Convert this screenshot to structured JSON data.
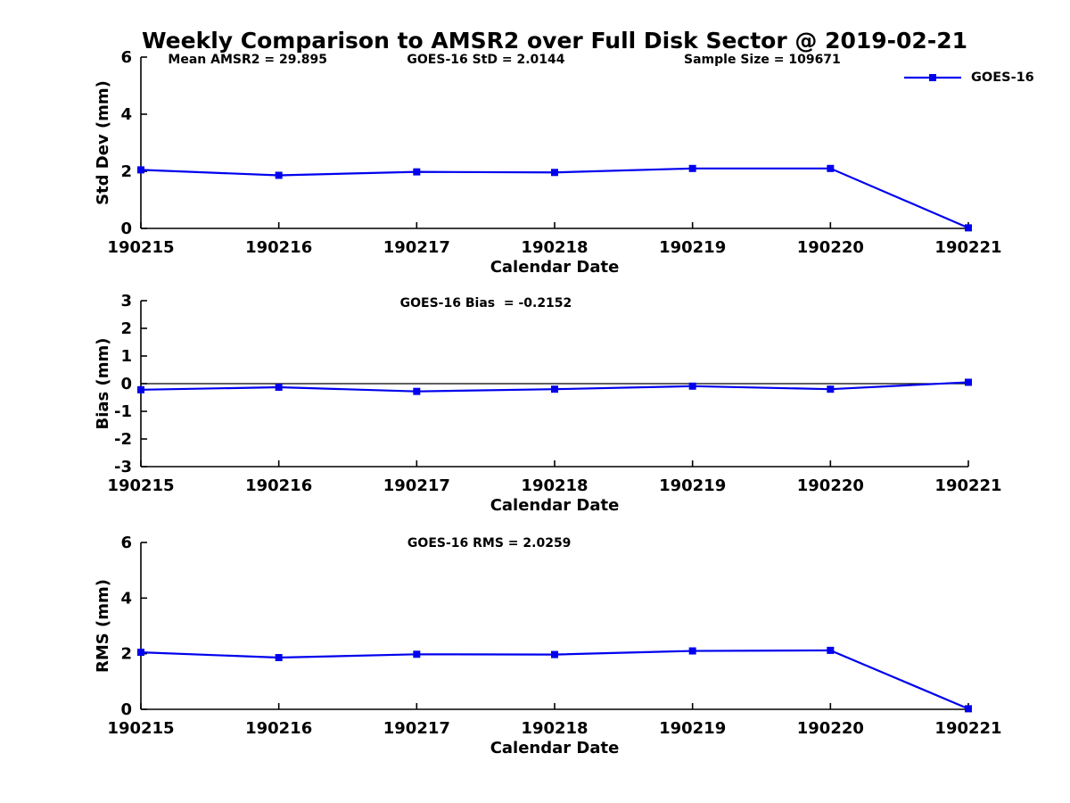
{
  "figure": {
    "title": "Weekly Comparison to AMSR2 over Full Disk Sector @ 2019-02-21",
    "legend": {
      "label": "GOES-16",
      "series_color": "#0000EE"
    }
  },
  "chart_data": [
    {
      "type": "line",
      "annotations": [
        "Mean AMSR2 = 29.895",
        "GOES-16 StD = 2.0144",
        "Sample Size = 109671"
      ],
      "ylabel": "Std Dev (mm)",
      "xlabel": "Calendar Date",
      "ylim": [
        0,
        6
      ],
      "yticks": [
        0,
        2,
        4,
        6
      ],
      "categories": [
        "190215",
        "190216",
        "190217",
        "190218",
        "190219",
        "190220",
        "190221"
      ],
      "series": [
        {
          "name": "GOES-16",
          "color": "#0000EE",
          "marker": "square",
          "values": [
            2.05,
            1.86,
            1.98,
            1.96,
            2.1,
            2.1,
            0.02
          ]
        }
      ],
      "grid": false,
      "legend_position": "top-right-outside"
    },
    {
      "type": "line",
      "annotations": [
        "GOES-16 Bias  = -0.2152"
      ],
      "ylabel": "Bias (mm)",
      "xlabel": "Calendar Date",
      "ylim": [
        -3,
        3
      ],
      "yticks": [
        -3,
        -2,
        -1,
        0,
        1,
        2,
        3
      ],
      "zero_line": true,
      "categories": [
        "190215",
        "190216",
        "190217",
        "190218",
        "190219",
        "190220",
        "190221"
      ],
      "series": [
        {
          "name": "GOES-16",
          "color": "#0000EE",
          "marker": "square",
          "values": [
            -0.22,
            -0.13,
            -0.28,
            -0.2,
            -0.09,
            -0.2,
            0.05
          ]
        }
      ],
      "grid": false
    },
    {
      "type": "line",
      "annotations": [
        "GOES-16 RMS = 2.0259"
      ],
      "ylabel": "RMS (mm)",
      "xlabel": "Calendar Date",
      "ylim": [
        0,
        6
      ],
      "yticks": [
        0,
        2,
        4,
        6
      ],
      "categories": [
        "190215",
        "190216",
        "190217",
        "190218",
        "190219",
        "190220",
        "190221"
      ],
      "series": [
        {
          "name": "GOES-16",
          "color": "#0000EE",
          "marker": "square",
          "values": [
            2.05,
            1.86,
            1.98,
            1.97,
            2.1,
            2.12,
            0.02
          ]
        }
      ],
      "grid": false
    }
  ]
}
